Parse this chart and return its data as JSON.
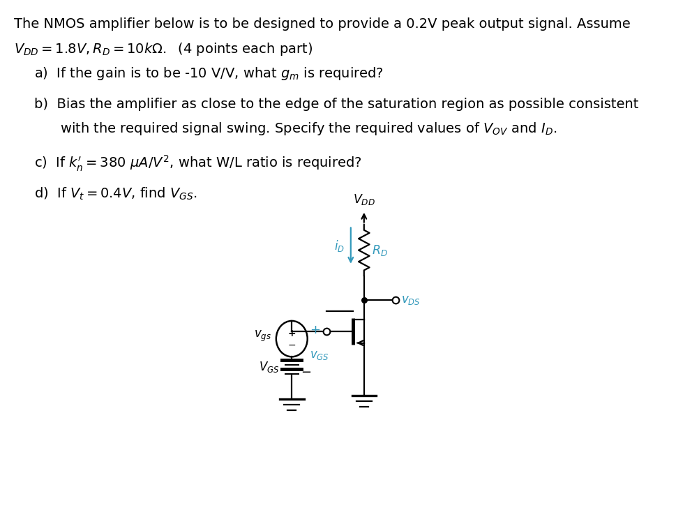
{
  "bg_color": "#ffffff",
  "text_color": "#000000",
  "circuit_color": "#000000",
  "cyan_color": "#3399bb",
  "title_line1": "The NMOS amplifier below is to be designed to provide a 0.2V peak output signal. Assume",
  "title_line2": "$V_{DD} = 1.8V, R_D = 10k\\Omega.$  (4 points each part)",
  "part_a": "a)  If the gain is to be -10 V/V, what $g_m$ is required?",
  "part_b_line1": "b)  Bias the amplifier as close to the edge of the saturation region as possible consistent",
  "part_b_line2": "      with the required signal swing. Specify the required values of $V_{OV}$ and $I_D$.",
  "part_c": "c)  If $k_n^{\\prime} = 380\\ \\mu A/V^2$, what W/L ratio is required?",
  "part_d": "d)  If $V_t = 0.4V$, find $V_{GS}$.",
  "font_size": 14.0,
  "fig_width": 10.03,
  "fig_height": 7.31
}
